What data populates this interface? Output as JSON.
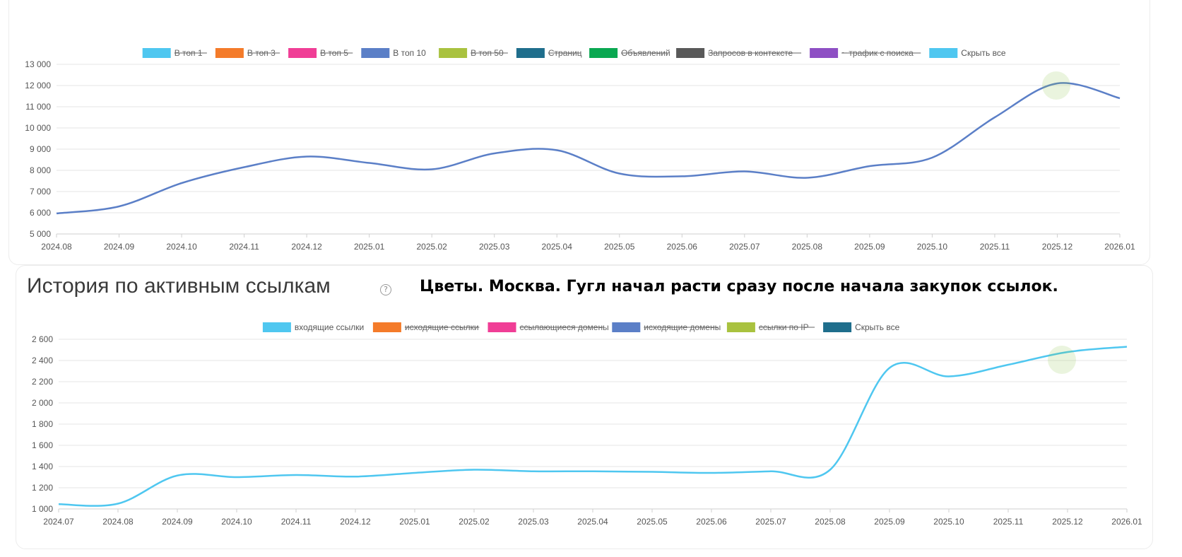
{
  "section_bottom": {
    "title": "История по активным ссылкам"
  },
  "annotation": "Цветы. Москва. Гугл начал расти сразу после начала закупок ссылок.",
  "chart_data": [
    {
      "type": "line",
      "title": "",
      "legend_position": "top-center",
      "grid": true,
      "ylim": [
        5000,
        13000
      ],
      "y_ticks": [
        5000,
        6000,
        7000,
        8000,
        9000,
        10000,
        11000,
        12000,
        13000
      ],
      "y_tick_labels": [
        "5 000",
        "6 000",
        "7 000",
        "8 000",
        "9 000",
        "10 000",
        "11 000",
        "12 000",
        "13 000"
      ],
      "categories": [
        "2024.08",
        "2024.09",
        "2024.10",
        "2024.11",
        "2024.12",
        "2025.01",
        "2025.02",
        "2025.03",
        "2025.04",
        "2025.05",
        "2025.06",
        "2025.07",
        "2025.08",
        "2025.09",
        "2025.10",
        "2025.11",
        "2025.12",
        "2026.01"
      ],
      "legend": [
        {
          "label": "В топ 1",
          "color": "#4fc7f0",
          "hidden": true
        },
        {
          "label": "В топ 3",
          "color": "#f47b2a",
          "hidden": true
        },
        {
          "label": "В топ 5",
          "color": "#f03e96",
          "hidden": true
        },
        {
          "label": "В топ 10",
          "color": "#5b7fc7",
          "hidden": false
        },
        {
          "label": "В топ 50",
          "color": "#a9c23f",
          "hidden": true
        },
        {
          "label": "Страниц",
          "color": "#1f6e8c",
          "hidden": true
        },
        {
          "label": "Объявлений",
          "color": "#0aa851",
          "hidden": true
        },
        {
          "label": "Запросов в контексте",
          "color": "#595959",
          "hidden": true
        },
        {
          "label": "~ трафик с поиска",
          "color": "#8e4fc4",
          "hidden": true
        },
        {
          "label": "Скрыть все",
          "color": "#4fc7f0",
          "hidden": false
        }
      ],
      "series": [
        {
          "name": "В топ 10",
          "color": "#5b7fc7",
          "values": [
            5970,
            6300,
            7400,
            8150,
            8650,
            8350,
            8050,
            8800,
            8950,
            7850,
            7720,
            7950,
            7650,
            8200,
            8600,
            10500,
            12100,
            11400
          ]
        }
      ]
    },
    {
      "type": "line",
      "title": "",
      "legend_position": "top-center",
      "grid": true,
      "ylim": [
        1000,
        2600
      ],
      "y_ticks": [
        1000,
        1200,
        1400,
        1600,
        1800,
        2000,
        2200,
        2400,
        2600
      ],
      "y_tick_labels": [
        "1 000",
        "1 200",
        "1 400",
        "1 600",
        "1 800",
        "2 000",
        "2 200",
        "2 400",
        "2 600"
      ],
      "categories": [
        "2024.07",
        "2024.08",
        "2024.09",
        "2024.10",
        "2024.11",
        "2024.12",
        "2025.01",
        "2025.02",
        "2025.03",
        "2025.04",
        "2025.05",
        "2025.06",
        "2025.07",
        "2025.08",
        "2025.09",
        "2025.10",
        "2025.11",
        "2025.12",
        "2026.01"
      ],
      "legend": [
        {
          "label": "входящие ссылки",
          "color": "#4fc7f0",
          "hidden": false
        },
        {
          "label": "исходящие ссылки",
          "color": "#f47b2a",
          "hidden": true
        },
        {
          "label": "ссылающиеся домены",
          "color": "#f03e96",
          "hidden": true
        },
        {
          "label": "исходящие домены",
          "color": "#5b7fc7",
          "hidden": true
        },
        {
          "label": "ссылки по IP",
          "color": "#a9c23f",
          "hidden": true
        },
        {
          "label": "Скрыть все",
          "color": "#1f6e8c",
          "hidden": false
        }
      ],
      "series": [
        {
          "name": "входящие ссылки",
          "color": "#4fc7f0",
          "values": [
            1045,
            1050,
            1315,
            1300,
            1320,
            1305,
            1340,
            1370,
            1355,
            1355,
            1350,
            1340,
            1355,
            1370,
            2330,
            2250,
            2360,
            2480,
            2530
          ]
        }
      ]
    }
  ]
}
